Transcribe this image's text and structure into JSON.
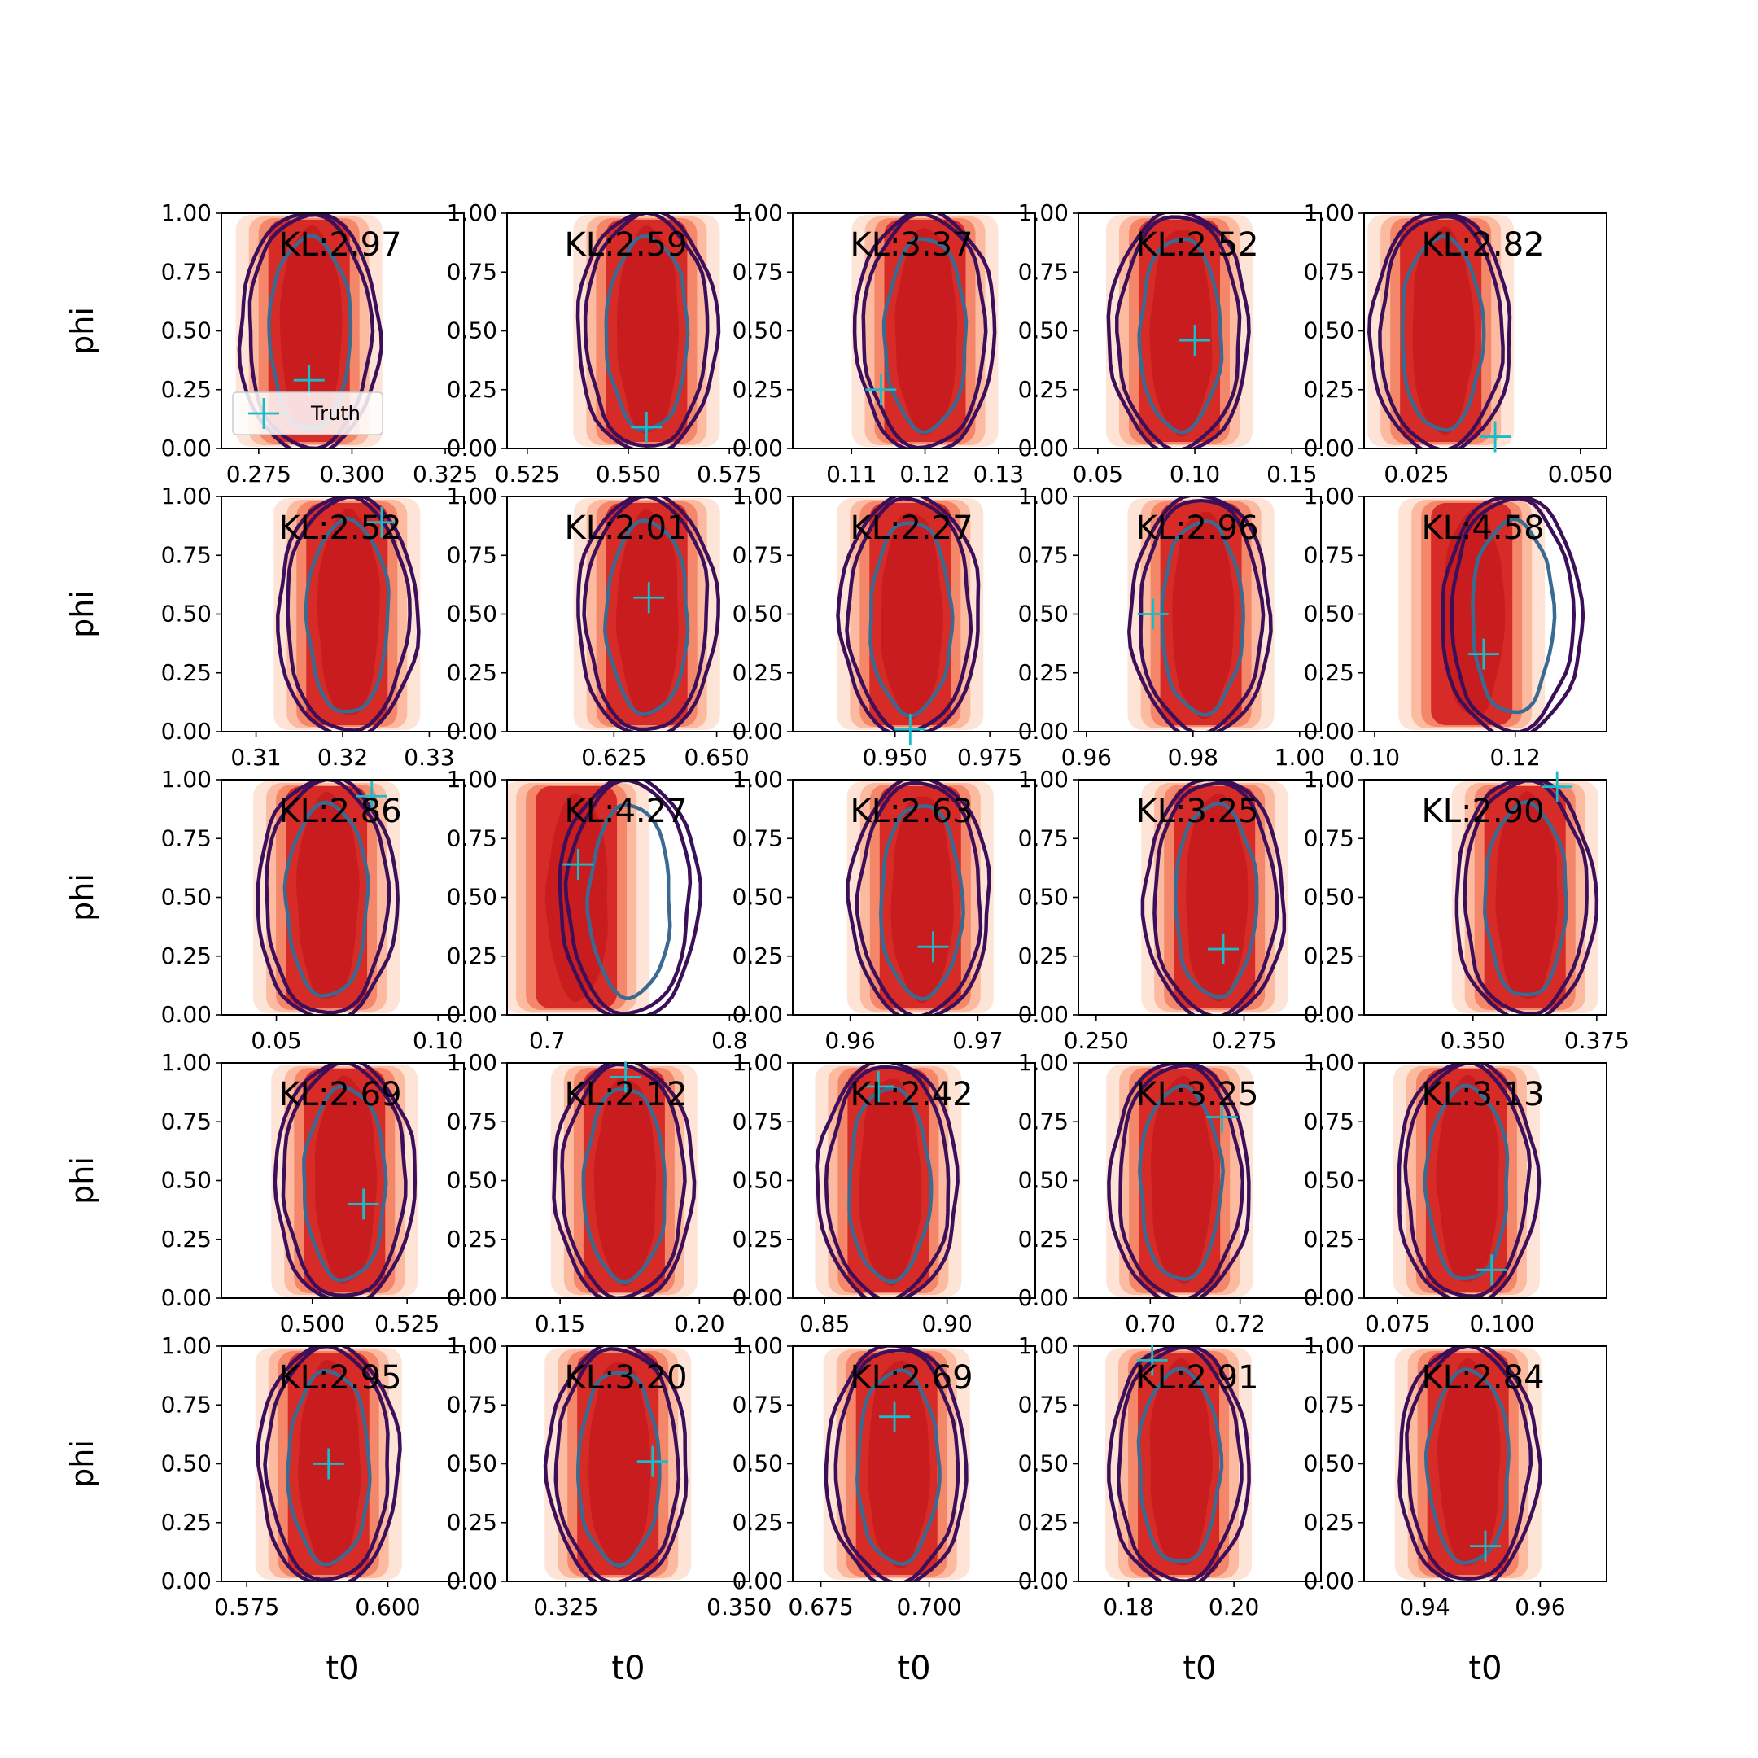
{
  "legend": {
    "label": "Truth",
    "marker": "+"
  },
  "colors": {
    "truth_marker": "#17bdc8",
    "contour_outer": "#3b0f5a",
    "contour_inner": "#3a6a91",
    "fill_levels": [
      "#fde4d6",
      "#fcbba1",
      "#f4876a",
      "#d62b26",
      "#c81c1f"
    ]
  },
  "chart_data": {
    "type": "contour",
    "layout": "5x5 grid",
    "xlabel": "t0",
    "ylabel": "phi",
    "ylim": [
      0,
      1
    ],
    "yticks": [
      "0.00",
      "0.25",
      "0.50",
      "0.75",
      "1.00"
    ],
    "panels": [
      {
        "kl": "KL:2.97",
        "xlim": [
          0.265,
          0.33
        ],
        "xticks": [
          {
            "v": 0.275,
            "l": "0.275"
          },
          {
            "v": 0.3,
            "l": "0.300"
          },
          {
            "v": 0.325,
            "l": "0.325"
          }
        ],
        "center": 0.2885,
        "truth": [
          0.2885,
          0.29
        ],
        "legend": true
      },
      {
        "kl": "KL:2.59",
        "xlim": [
          0.52,
          0.58
        ],
        "xticks": [
          {
            "v": 0.525,
            "l": "0.525"
          },
          {
            "v": 0.55,
            "l": "0.550"
          },
          {
            "v": 0.575,
            "l": "0.575"
          }
        ],
        "center": 0.5545,
        "truth": [
          0.5545,
          0.09
        ]
      },
      {
        "kl": "KL:3.37",
        "xlim": [
          0.102,
          0.135
        ],
        "xticks": [
          {
            "v": 0.11,
            "l": "0.11"
          },
          {
            "v": 0.12,
            "l": "0.12"
          },
          {
            "v": 0.13,
            "l": "0.13"
          }
        ],
        "center": 0.12,
        "truth": [
          0.114,
          0.25
        ]
      },
      {
        "kl": "KL:2.52",
        "xlim": [
          0.04,
          0.165
        ],
        "xticks": [
          {
            "v": 0.05,
            "l": "0.05"
          },
          {
            "v": 0.1,
            "l": "0.10"
          },
          {
            "v": 0.15,
            "l": "0.15"
          }
        ],
        "center": 0.092,
        "truth": [
          0.1,
          0.46
        ]
      },
      {
        "kl": "KL:2.82",
        "xlim": [
          0.017,
          0.054
        ],
        "xticks": [
          {
            "v": 0.025,
            "l": "0.025"
          },
          {
            "v": 0.05,
            "l": "0.050"
          }
        ],
        "center": 0.0287,
        "truth": [
          0.037,
          0.05
        ]
      },
      {
        "kl": "KL:2.52",
        "xlim": [
          0.306,
          0.334
        ],
        "xticks": [
          {
            "v": 0.31,
            "l": "0.31"
          },
          {
            "v": 0.32,
            "l": "0.32"
          },
          {
            "v": 0.33,
            "l": "0.33"
          }
        ],
        "center": 0.3205,
        "truth": [
          0.3245,
          0.89
        ]
      },
      {
        "kl": "KL:2.01",
        "xlim": [
          0.599,
          0.658
        ],
        "xticks": [
          {
            "v": 0.625,
            "l": "0.625"
          },
          {
            "v": 0.65,
            "l": "0.650"
          }
        ],
        "center": 0.633,
        "truth": [
          0.6335,
          0.57
        ]
      },
      {
        "kl": "KL:2.27",
        "xlim": [
          0.923,
          0.987
        ],
        "xticks": [
          {
            "v": 0.95,
            "l": "0.950"
          },
          {
            "v": 0.975,
            "l": "0.975"
          }
        ],
        "center": 0.954,
        "truth": [
          0.954,
          0.01
        ]
      },
      {
        "kl": "KL:2.96",
        "xlim": [
          0.9585,
          1.004
        ],
        "xticks": [
          {
            "v": 0.96,
            "l": "0.96"
          },
          {
            "v": 0.98,
            "l": "0.98"
          },
          {
            "v": 1.0,
            "l": "1.00"
          }
        ],
        "center": 0.9815,
        "truth": [
          0.9725,
          0.5
        ]
      },
      {
        "kl": "KL:4.58",
        "xlim": [
          0.0985,
          0.133
        ],
        "xticks": [
          {
            "v": 0.1,
            "l": "0.10"
          },
          {
            "v": 0.12,
            "l": "0.12"
          }
        ],
        "center": 0.1138,
        "ellipse_center": 0.1195,
        "truth": [
          0.1155,
          0.33
        ]
      },
      {
        "kl": "KL:2.86",
        "xlim": [
          0.033,
          0.108
        ],
        "xticks": [
          {
            "v": 0.05,
            "l": "0.05"
          },
          {
            "v": 0.1,
            "l": "0.10"
          }
        ],
        "center": 0.0655,
        "truth": [
          0.0795,
          0.93
        ]
      },
      {
        "kl": "KL:4.27",
        "xlim": [
          0.678,
          0.811
        ],
        "xticks": [
          {
            "v": 0.7,
            "l": "0.7"
          },
          {
            "v": 0.8,
            "l": "0.8"
          }
        ],
        "center": 0.716,
        "ellipse_center": 0.745,
        "truth": [
          0.717,
          0.64
        ]
      },
      {
        "kl": "KL:2.63",
        "xlim": [
          0.9555,
          0.9745
        ],
        "xticks": [
          {
            "v": 0.96,
            "l": "0.96"
          },
          {
            "v": 0.97,
            "l": "0.97"
          }
        ],
        "center": 0.9655,
        "truth": [
          0.9665,
          0.29
        ]
      },
      {
        "kl": "KL:3.25",
        "xlim": [
          0.247,
          0.288
        ],
        "xticks": [
          {
            "v": 0.25,
            "l": "0.250"
          },
          {
            "v": 0.275,
            "l": "0.275"
          }
        ],
        "center": 0.27,
        "truth": [
          0.2715,
          0.28
        ]
      },
      {
        "kl": "KL:2.90",
        "xlim": [
          0.328,
          0.377
        ],
        "xticks": [
          {
            "v": 0.35,
            "l": "0.350"
          },
          {
            "v": 0.375,
            "l": "0.375"
          }
        ],
        "center": 0.3605,
        "truth": [
          0.367,
          0.97
        ]
      },
      {
        "kl": "KL:2.69",
        "xlim": [
          0.476,
          0.54
        ],
        "xticks": [
          {
            "v": 0.5,
            "l": "0.500"
          },
          {
            "v": 0.525,
            "l": "0.525"
          }
        ],
        "center": 0.5085,
        "truth": [
          0.5135,
          0.4
        ]
      },
      {
        "kl": "KL:2.12",
        "xlim": [
          0.131,
          0.218
        ],
        "xticks": [
          {
            "v": 0.15,
            "l": "0.15"
          },
          {
            "v": 0.2,
            "l": "0.20"
          }
        ],
        "center": 0.173,
        "truth": [
          0.1735,
          0.94
        ]
      },
      {
        "kl": "KL:2.42",
        "xlim": [
          0.837,
          0.936
        ],
        "xticks": [
          {
            "v": 0.85,
            "l": "0.85"
          },
          {
            "v": 0.9,
            "l": "0.90"
          }
        ],
        "center": 0.876,
        "truth": [
          0.872,
          0.9
        ]
      },
      {
        "kl": "KL:3.25",
        "xlim": [
          0.684,
          0.738
        ],
        "xticks": [
          {
            "v": 0.7,
            "l": "0.70"
          },
          {
            "v": 0.72,
            "l": "0.72"
          }
        ],
        "center": 0.7065,
        "truth": [
          0.716,
          0.77
        ]
      },
      {
        "kl": "KL:3.13",
        "xlim": [
          0.067,
          0.125
        ],
        "xticks": [
          {
            "v": 0.075,
            "l": "0.075"
          },
          {
            "v": 0.1,
            "l": "0.100"
          }
        ],
        "center": 0.0915,
        "truth": [
          0.0975,
          0.12
        ]
      },
      {
        "kl": "KL:2.95",
        "xlim": [
          0.5705,
          0.6135
        ],
        "xticks": [
          {
            "v": 0.575,
            "l": "0.575"
          },
          {
            "v": 0.6,
            "l": "0.600"
          }
        ],
        "center": 0.5895,
        "truth": [
          0.5895,
          0.5
        ]
      },
      {
        "kl": "KL:3.20",
        "xlim": [
          0.3165,
          0.3515
        ],
        "xticks": [
          {
            "v": 0.325,
            "l": "0.325"
          },
          {
            "v": 0.35,
            "l": "0.350"
          }
        ],
        "center": 0.3325,
        "truth": [
          0.3375,
          0.51
        ]
      },
      {
        "kl": "KL:2.69",
        "xlim": [
          0.6685,
          0.7245
        ],
        "xticks": [
          {
            "v": 0.675,
            "l": "0.675"
          },
          {
            "v": 0.7,
            "l": "0.700"
          }
        ],
        "center": 0.6925,
        "truth": [
          0.692,
          0.7
        ]
      },
      {
        "kl": "KL:2.91",
        "xlim": [
          0.1705,
          0.2165
        ],
        "xticks": [
          {
            "v": 0.18,
            "l": "0.18"
          },
          {
            "v": 0.2,
            "l": "0.20"
          }
        ],
        "center": 0.1895,
        "truth": [
          0.1845,
          0.94
        ]
      },
      {
        "kl": "KL:2.84",
        "xlim": [
          0.9295,
          0.9715
        ],
        "xticks": [
          {
            "v": 0.94,
            "l": "0.94"
          },
          {
            "v": 0.96,
            "l": "0.96"
          }
        ],
        "center": 0.9475,
        "truth": [
          0.9505,
          0.15
        ]
      }
    ]
  }
}
